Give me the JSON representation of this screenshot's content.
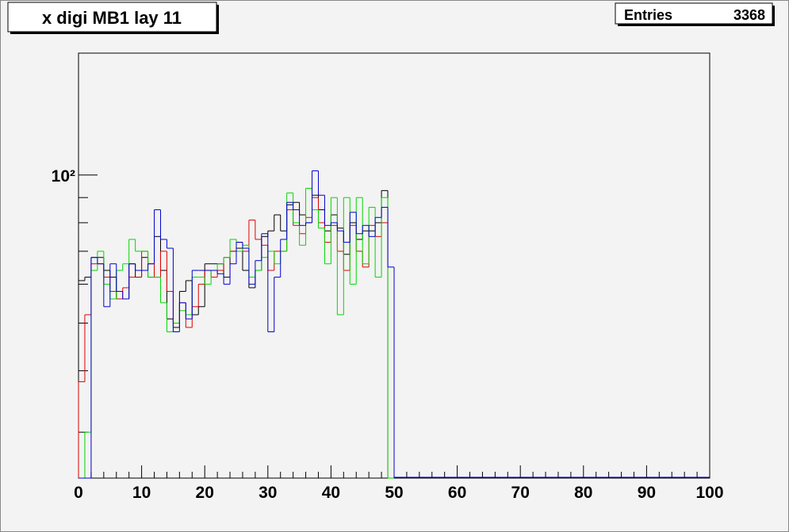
{
  "chart_data": {
    "type": "histogram",
    "title": "x digi MB1 lay 11",
    "stats": {
      "label": "Entries",
      "value": 3368
    },
    "log_y": true,
    "bins": [
      0,
      1,
      2,
      3,
      4,
      5,
      6,
      7,
      8,
      9,
      10,
      11,
      12,
      13,
      14,
      15,
      16,
      17,
      18,
      19,
      20,
      21,
      22,
      23,
      24,
      25,
      26,
      27,
      28,
      29,
      30,
      31,
      32,
      33,
      34,
      35,
      36,
      37,
      38,
      39,
      40,
      41,
      42,
      43,
      44,
      45,
      46,
      47,
      48,
      49,
      50
    ],
    "series": [
      {
        "color": "#000000",
        "values": [
          61,
          62,
          68,
          68,
          64,
          62,
          56,
          56,
          66,
          62,
          68,
          62,
          75,
          64,
          51,
          49,
          58,
          61,
          52,
          54,
          66,
          66,
          66,
          62,
          70,
          71,
          64,
          59,
          64,
          75,
          77,
          83,
          77,
          87,
          88,
          83,
          80,
          91,
          85,
          77,
          83,
          78,
          69,
          80,
          74,
          77,
          77,
          80,
          93,
          0
        ]
      },
      {
        "color": "#e00000",
        "values": [
          38,
          52,
          66,
          66,
          62,
          58,
          56,
          59,
          62,
          62,
          70,
          66,
          62,
          70,
          58,
          50,
          55,
          49,
          54,
          60,
          64,
          62,
          64,
          68,
          70,
          73,
          70,
          81,
          74,
          72,
          64,
          70,
          70,
          85,
          79,
          76,
          82,
          90,
          80,
          73,
          79,
          70,
          64,
          79,
          70,
          65,
          79,
          75,
          80,
          0
        ]
      },
      {
        "color": "#00d800",
        "values": [
          0,
          30,
          64,
          70,
          60,
          56,
          64,
          66,
          74,
          70,
          70,
          62,
          62,
          55,
          48,
          50,
          53,
          52,
          62,
          62,
          60,
          64,
          66,
          68,
          74,
          70,
          72,
          62,
          64,
          68,
          70,
          66,
          70,
          92,
          80,
          72,
          94,
          85,
          78,
          66,
          90,
          52,
          90,
          60,
          90,
          66,
          86,
          62,
          90,
          0
        ]
      },
      {
        "color": "#0000d0",
        "values": [
          0,
          0,
          68,
          66,
          54,
          66,
          58,
          56,
          66,
          64,
          64,
          66,
          85,
          74,
          71,
          48,
          55,
          51,
          64,
          64,
          64,
          64,
          63,
          60,
          66,
          73,
          71,
          60,
          67,
          76,
          48,
          62,
          74,
          88,
          85,
          79,
          80,
          102,
          91,
          79,
          80,
          77,
          73,
          84,
          76,
          79,
          75,
          82,
          86,
          65
        ]
      }
    ],
    "xlim": [
      0,
      100
    ],
    "xticks": [
      0,
      10,
      20,
      30,
      40,
      50,
      60,
      70,
      80,
      90,
      100
    ],
    "ylim": [
      24.2,
      177
    ],
    "yticks": [
      {
        "value": 100,
        "label": "10²"
      }
    ],
    "yminorticks": [
      30,
      40,
      50,
      60,
      70,
      80,
      90
    ]
  }
}
